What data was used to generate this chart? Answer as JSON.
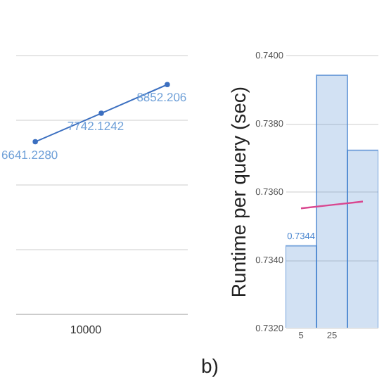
{
  "chart_data": [
    {
      "type": "line",
      "categories": [
        null,
        null,
        null
      ],
      "values": [
        6641.228,
        7742.1242,
        8852.206
      ],
      "value_labels": [
        "6641.2280",
        "7742.1242",
        "8852.206"
      ],
      "annotations": [
        "10000"
      ],
      "color": "#3b6fc0",
      "marker": "circle",
      "grid": "y",
      "ylim": [
        0,
        10000
      ],
      "yticks": [
        0,
        2500,
        5000,
        7500,
        10000
      ],
      "tick_labels": false
    },
    {
      "type": "bar",
      "categories": [
        "5",
        "25",
        null
      ],
      "ylabel": "Runtime per query (sec)",
      "annotations": [
        "b)"
      ],
      "grid": "y",
      "ylim": [
        0.732,
        0.74
      ],
      "yticks": [
        {
          "value": 0.732,
          "label": "0.7320"
        },
        {
          "value": 0.734,
          "label": "0.7340"
        },
        {
          "value": 0.736,
          "label": "0.7360"
        },
        {
          "value": 0.738,
          "label": "0.7380"
        },
        {
          "value": 0.74,
          "label": "0.7400"
        }
      ],
      "series": [
        {
          "color": "#4a86d0",
          "values": [
            0.7344,
            0.7394,
            0.7372
          ],
          "value_labels": [
            "0.7344",
            null,
            null
          ]
        },
        {
          "type": "line",
          "color": "#d9468f",
          "values": [
            0.7355,
            0.7356,
            0.7357
          ]
        }
      ]
    }
  ]
}
